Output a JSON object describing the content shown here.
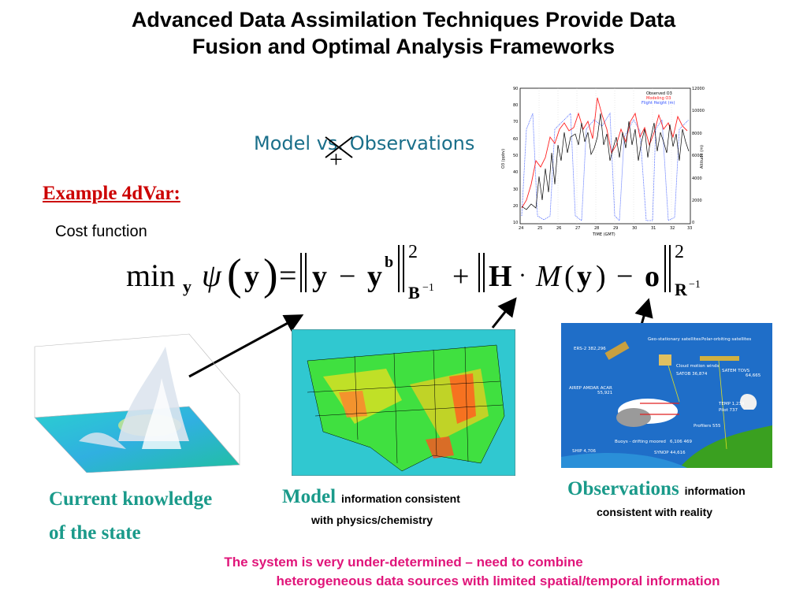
{
  "title": {
    "line1": "Advanced Data Assimilation Techniques Provide Data",
    "line2": "Fusion and Optimal Analysis Frameworks"
  },
  "model_vs_observations": {
    "model": "Model",
    "struck": "vs.",
    "observations": "Observations",
    "plus": "+"
  },
  "example_heading": "Example 4dVar:",
  "cost_function_label": "Cost function",
  "equation": {
    "min": "min",
    "min_sub": "y",
    "psi": "ψ",
    "y": "y",
    "equals": "=",
    "minus": "−",
    "b_sup": "b",
    "square": "2",
    "B_inv": "B",
    "inv": "−1",
    "plus": "+",
    "H": "H",
    "dot": "·",
    "M": "M",
    "o": "o",
    "R_inv": "R"
  },
  "inset_chart": {
    "legend": [
      "Observed O3",
      "Modeling O3",
      "Flight Height (m)"
    ],
    "colors": {
      "observed": "#000000",
      "modeling": "#ff2020",
      "flight": "#3050ff"
    },
    "y_left_ticks": [
      "90",
      "80",
      "70",
      "60",
      "50",
      "40",
      "30",
      "20",
      "10"
    ],
    "y_right_ticks": [
      "12000",
      "10000",
      "8000",
      "6000",
      "4000",
      "2000",
      "0"
    ],
    "x_ticks": [
      "24",
      "25",
      "26",
      "27",
      "28",
      "29",
      "30",
      "31",
      "32",
      "33"
    ],
    "x_label": "TIME (GMT)",
    "y_left_label": "O3 (ppbv)",
    "y_right_label": "Altitude (m)"
  },
  "obs_diagram": {
    "ers": "ERS-2\n382,296",
    "geo": "Geo-stationary satellites",
    "polar": "Polar-orbiting satellites",
    "cloud": "Cloud motion winds",
    "satob": "SATOB 36,874",
    "satem": "SATEM TOVS",
    "satem_n": "64,665",
    "airep": "AIREP AMDAR ACAR",
    "airep_n": "55,921",
    "temp": "TEMP 1,234",
    "pilot": "Pilot 737",
    "profilers": "Profilers 555",
    "buoys": "Buoys - drifting moored",
    "buoys_n": "6,106 469",
    "synop": "SYNOP 44,616",
    "ship": "SHIP 4,706"
  },
  "captions": {
    "current_line1": "Current knowledge",
    "current_line2": "of the state",
    "model_big": "Model",
    "model_small_1": "information consistent",
    "model_small_2": "with physics/chemistry",
    "obs_big": "Observations",
    "obs_small_1": "information",
    "obs_small_2": "consistent with reality"
  },
  "bottom_note": {
    "line1": "The system is very under-determined – need to combine",
    "line2": "heterogeneous data sources with limited spatial/temporal information"
  }
}
